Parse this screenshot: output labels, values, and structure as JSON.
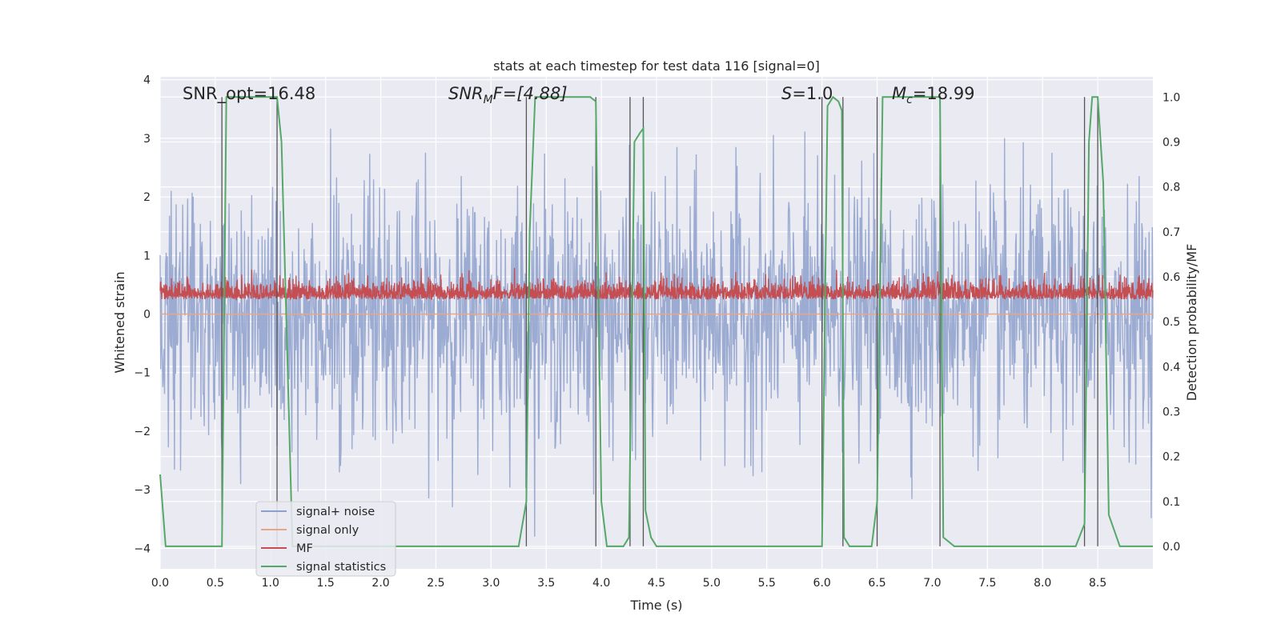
{
  "chart_data": {
    "type": "line",
    "title": "stats at each timestep for test data 116 [signal=0]",
    "xlabel": "Time (s)",
    "ylabel": "Whitened strain",
    "y2label": "Detection probability/MF",
    "xlim": [
      0.0,
      9.0
    ],
    "ylim": [
      -4.35,
      4.05
    ],
    "y2lim": [
      -0.05,
      1.045
    ],
    "xticks": [
      "0.0",
      "0.5",
      "1.0",
      "1.5",
      "2.0",
      "2.5",
      "3.0",
      "3.5",
      "4.0",
      "4.5",
      "5.0",
      "5.5",
      "6.0",
      "6.5",
      "7.0",
      "7.5",
      "8.0",
      "8.5"
    ],
    "yticks": [
      "4",
      "3",
      "2",
      "1",
      "0",
      "−1",
      "−2",
      "−3",
      "−4"
    ],
    "y2ticks": [
      "1.0",
      "0.9",
      "0.8",
      "0.7",
      "0.6",
      "0.5",
      "0.4",
      "0.3",
      "0.2",
      "0.1",
      "0.0"
    ],
    "grid": true,
    "legend_position": "lower-left",
    "annotations": {
      "snr_opt": "SNR_opt=16.48",
      "snr_mf_main": "SNR",
      "snr_mf_sub": "M",
      "snr_mf_rest": "F=[4.88]",
      "s_main": "S",
      "s_rest": "=1.0",
      "mc_main": "M",
      "mc_sub": "c",
      "mc_rest": "=18.99"
    },
    "series": [
      {
        "name": "signal+ noise",
        "axis": "left",
        "color": "#8da0cb",
        "description": "noise-dominated strain, roughly symmetric about 0 with amplitude up to about ±3.5",
        "sample_interval_s": 0.005,
        "typical_envelope": [
          -2.5,
          2.5
        ],
        "peak_range": [
          -3.8,
          3.5
        ]
      },
      {
        "name": "signal only",
        "axis": "left",
        "color": "#e8a58a",
        "description": "flat near zero",
        "values_constant": 0.0
      },
      {
        "name": "MF",
        "axis": "left",
        "color": "#c44e52",
        "description": "matched-filter output fluctuating between about 0.0 and 0.8",
        "value_range": [
          0.0,
          0.8
        ]
      },
      {
        "name": "signal statistics",
        "axis": "right",
        "color": "#55a868",
        "x": [
          0.0,
          0.05,
          0.1,
          0.2,
          0.3,
          0.4,
          0.5,
          0.56,
          0.6,
          0.64,
          0.7,
          0.8,
          0.9,
          1.0,
          1.06,
          1.1,
          1.2,
          1.3,
          1.4,
          1.5,
          1.8,
          2.1,
          2.4,
          2.7,
          3.0,
          3.25,
          3.32,
          3.35,
          3.4,
          3.5,
          3.6,
          3.7,
          3.8,
          3.9,
          3.95,
          4.0,
          4.05,
          4.1,
          4.2,
          4.25,
          4.3,
          4.35,
          4.38,
          4.4,
          4.45,
          4.5,
          4.6,
          4.8,
          5.1,
          5.4,
          5.7,
          6.0,
          6.05,
          6.1,
          6.15,
          6.18,
          6.2,
          6.25,
          6.3,
          6.35,
          6.45,
          6.5,
          6.55,
          6.6,
          6.7,
          6.8,
          6.9,
          7.0,
          7.07,
          7.1,
          7.2,
          7.3,
          7.5,
          7.7,
          7.9,
          8.1,
          8.3,
          8.38,
          8.42,
          8.45,
          8.5,
          8.55,
          8.6,
          8.7,
          8.8,
          8.9,
          9.0
        ],
        "values": [
          0.16,
          0.0,
          0.0,
          0.0,
          0.0,
          0.0,
          0.0,
          0.0,
          1.0,
          1.0,
          1.0,
          1.0,
          1.0,
          1.0,
          1.0,
          0.9,
          0.0,
          0.0,
          0.0,
          0.0,
          0.0,
          0.0,
          0.0,
          0.0,
          0.0,
          0.0,
          0.1,
          0.7,
          1.0,
          1.0,
          1.0,
          1.0,
          1.0,
          1.0,
          0.99,
          0.1,
          0.0,
          0.0,
          0.0,
          0.02,
          0.9,
          0.92,
          0.93,
          0.08,
          0.02,
          0.0,
          0.0,
          0.0,
          0.0,
          0.0,
          0.0,
          0.0,
          0.98,
          1.0,
          0.99,
          0.97,
          0.02,
          0.0,
          0.0,
          0.0,
          0.0,
          0.1,
          1.0,
          1.0,
          1.0,
          1.0,
          1.0,
          1.0,
          1.0,
          0.02,
          0.0,
          0.0,
          0.0,
          0.0,
          0.0,
          0.0,
          0.0,
          0.05,
          0.9,
          1.0,
          1.0,
          0.81,
          0.07,
          0.0,
          0.0,
          0.0,
          0.0
        ]
      }
    ],
    "vertical_markers_x": [
      0.56,
      1.06,
      3.32,
      3.95,
      4.26,
      4.38,
      6.0,
      6.19,
      6.5,
      7.07,
      8.38,
      8.5
    ]
  }
}
